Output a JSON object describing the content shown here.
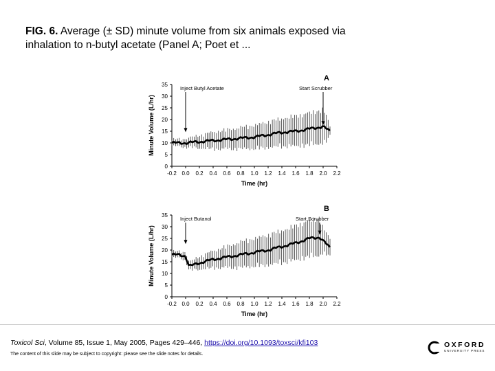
{
  "caption": {
    "fig_label": "FIG. 6.",
    "text": "Average (± SD) minute volume from six animals exposed via inhalation to n-butyl acetate (Panel A; Poet et ..."
  },
  "chart_data": [
    {
      "type": "line",
      "panel_letter": "A",
      "xlabel": "Time (hr)",
      "ylabel": "Minute Volume (L/hr)",
      "xlim": [
        -0.2,
        2.2
      ],
      "ylim": [
        0,
        35
      ],
      "xticks": [
        "-0.2",
        "0.0",
        "0.2",
        "0.4",
        "0.6",
        "0.8",
        "1.0",
        "1.2",
        "1.4",
        "1.6",
        "1.8",
        "2.0",
        "2.2"
      ],
      "yticks": [
        "0",
        "5",
        "10",
        "15",
        "20",
        "25",
        "30",
        "35"
      ],
      "annotations": [
        {
          "text": "Inject Butyl Acetate",
          "x": 0.0,
          "y": 14
        },
        {
          "text": "Start Scrubber",
          "x": 2.0,
          "y": 17
        }
      ],
      "series": [
        {
          "x": [
            -0.2,
            0.0,
            0.2,
            0.4,
            0.6,
            0.8,
            1.0,
            1.2,
            1.4,
            1.6,
            1.8,
            1.9,
            2.0,
            2.05,
            2.1
          ],
          "y": [
            10,
            10,
            10.5,
            11,
            11.5,
            12,
            12.5,
            13.5,
            14.5,
            15,
            16,
            16.5,
            17,
            16,
            15
          ],
          "sd": [
            1.5,
            2,
            3,
            4,
            4.5,
            5,
            5.5,
            6,
            6.5,
            7,
            7.5,
            7.5,
            8,
            6,
            2
          ]
        }
      ]
    },
    {
      "type": "line",
      "panel_letter": "B",
      "xlabel": "Time (hr)",
      "ylabel": "Minute Volume (L/hr)",
      "xlim": [
        -0.2,
        2.2
      ],
      "ylim": [
        0,
        35
      ],
      "xticks": [
        "-0.2",
        "0.0",
        "0.2",
        "0.4",
        "0.6",
        "0.8",
        "1.0",
        "1.2",
        "1.4",
        "1.6",
        "1.8",
        "2.0",
        "2.2"
      ],
      "yticks": [
        "0",
        "5",
        "10",
        "15",
        "20",
        "25",
        "30",
        "35"
      ],
      "annotations": [
        {
          "text": "Inject Butanol",
          "x": 0.0,
          "y": 22
        },
        {
          "text": "Start Scrubber",
          "x": 1.95,
          "y": 26
        }
      ],
      "series": [
        {
          "x": [
            -0.2,
            -0.1,
            0.0,
            0.05,
            0.2,
            0.4,
            0.6,
            0.8,
            1.0,
            1.2,
            1.4,
            1.6,
            1.8,
            1.95,
            2.0,
            2.1
          ],
          "y": [
            18,
            18,
            17.5,
            13,
            14.5,
            16,
            17,
            18,
            19,
            20,
            21.5,
            23,
            25,
            25.5,
            24,
            21
          ],
          "sd": [
            1.5,
            1.5,
            2,
            2,
            3,
            4,
            5,
            6,
            6.5,
            7,
            7.5,
            8,
            8.5,
            8.5,
            6,
            4
          ]
        }
      ]
    }
  ],
  "footer": {
    "journal": "Toxicol Sci",
    "citation_rest": ", Volume 85, Issue 1, May 2005, Pages 429–446, ",
    "doi": "https://doi.org/10.1093/toxsci/kfi103",
    "disclaimer": "The content of this slide may be subject to copyright: please see the slide notes for details.",
    "publisher_word": "OXFORD",
    "publisher_sub": "UNIVERSITY PRESS"
  },
  "colors": {
    "series": "#000000",
    "error_bars": "#333333"
  }
}
